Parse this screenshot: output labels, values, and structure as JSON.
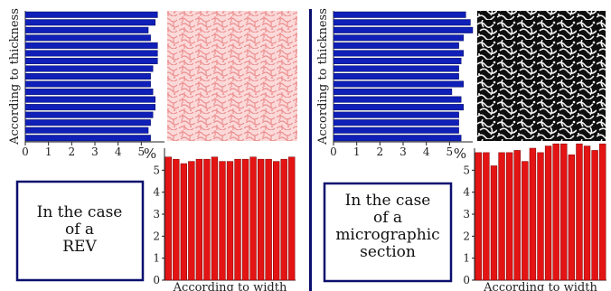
{
  "colors": {
    "thickness_bar": "#0f1fb8",
    "width_bar": "#e41414",
    "box_border": "#0b0f6e",
    "divider": "#0b0f6e",
    "rev_texture": "#f3a6a6",
    "micro_texture_dark": "#111111"
  },
  "panels": [
    {
      "box_lines": [
        "In the case",
        "of a",
        "REV"
      ],
      "image": "rev-texture-image"
    },
    {
      "box_lines": [
        "In the case",
        "of a",
        "micrographic",
        "section"
      ],
      "image": "micrograph-texture-image"
    }
  ],
  "chart_data": [
    {
      "type": "bar",
      "orientation": "horizontal",
      "panel": "REV",
      "ylabel": "According to thickness",
      "xlim": [
        0,
        6
      ],
      "xticks": [
        "0",
        "1",
        "2",
        "3",
        "4",
        "5"
      ],
      "unit": "%",
      "values": [
        5.7,
        5.6,
        5.3,
        5.4,
        5.7,
        5.7,
        5.7,
        5.5,
        5.4,
        5.4,
        5.5,
        5.6,
        5.6,
        5.5,
        5.4,
        5.3,
        5.4
      ]
    },
    {
      "type": "bar",
      "panel": "REV",
      "xlabel": "According to width",
      "unit": "%",
      "ylim": [
        0,
        6
      ],
      "yticks": [
        "0",
        "1",
        "2",
        "3",
        "4",
        "5"
      ],
      "values": [
        5.6,
        5.5,
        5.3,
        5.4,
        5.5,
        5.5,
        5.6,
        5.4,
        5.4,
        5.5,
        5.5,
        5.6,
        5.5,
        5.5,
        5.4,
        5.5,
        5.6
      ]
    },
    {
      "type": "bar",
      "orientation": "horizontal",
      "panel": "micrographic section",
      "ylabel": "According to thickness",
      "xlim": [
        0,
        6
      ],
      "xticks": [
        "0",
        "1",
        "2",
        "3",
        "4",
        "5"
      ],
      "unit": "%",
      "values": [
        5.7,
        5.9,
        6.0,
        5.6,
        5.4,
        5.6,
        5.5,
        5.4,
        5.4,
        5.6,
        5.1,
        5.5,
        5.6,
        5.4,
        5.4,
        5.4,
        5.5
      ]
    },
    {
      "type": "bar",
      "panel": "micrographic section",
      "xlabel": "According to width",
      "unit": "%",
      "ylim": [
        0,
        6
      ],
      "yticks": [
        "0",
        "1",
        "2",
        "3",
        "4",
        "5"
      ],
      "values": [
        5.8,
        5.8,
        5.2,
        5.8,
        5.8,
        5.9,
        5.4,
        6.0,
        5.8,
        6.1,
        6.2,
        6.2,
        5.7,
        6.2,
        6.1,
        5.9,
        6.2
      ]
    }
  ]
}
